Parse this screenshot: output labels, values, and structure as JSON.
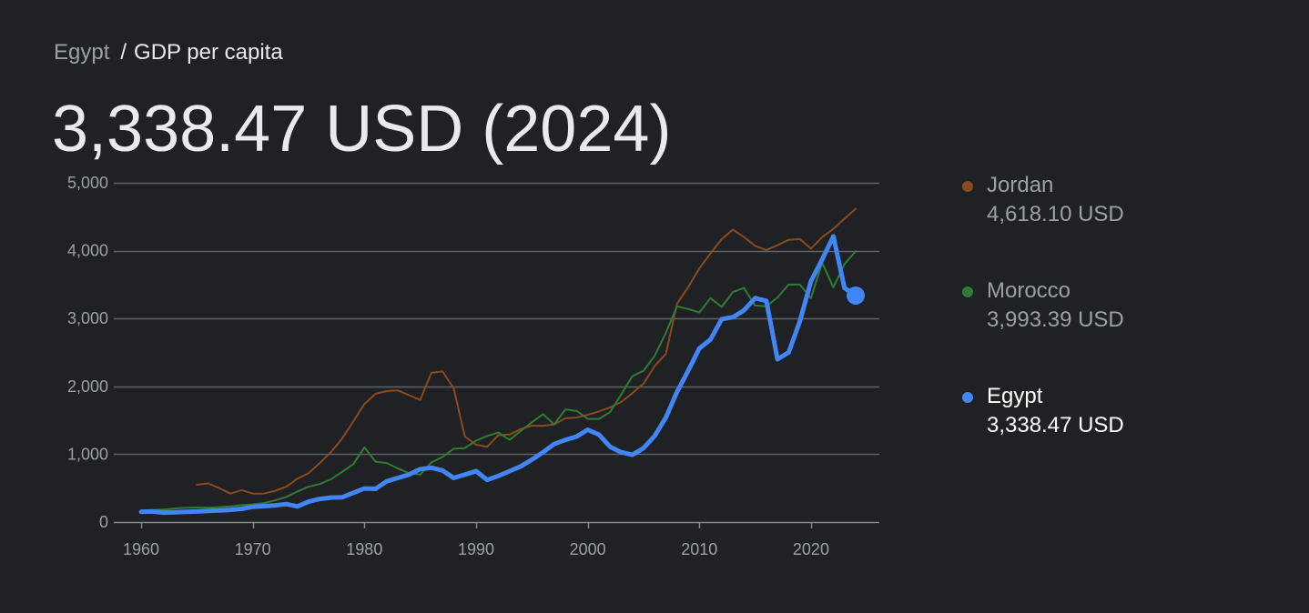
{
  "breadcrumb": {
    "parent": "Egypt",
    "separator": "/",
    "current": "GDP per capita"
  },
  "headline": "3,338.47 USD (2024)",
  "legend": [
    {
      "name": "Jordan",
      "value": "4,618.10 USD",
      "color": "#8a4a1e",
      "active": false
    },
    {
      "name": "Morocco",
      "value": "3,993.39 USD",
      "color": "#2e7d32",
      "active": false
    },
    {
      "name": "Egypt",
      "value": "3,338.47 USD",
      "color": "#4285f4",
      "active": true
    }
  ],
  "chart_data": {
    "type": "line",
    "xlim": [
      1960,
      2024
    ],
    "ylim": [
      0,
      5000
    ],
    "yticks": [
      0,
      1000,
      2000,
      3000,
      4000,
      5000
    ],
    "ytick_labels": [
      "0",
      "1,000",
      "2,000",
      "3,000",
      "4,000",
      "5,000"
    ],
    "xticks": [
      1960,
      1970,
      1980,
      1990,
      2000,
      2010,
      2020
    ],
    "xtick_labels": [
      "1960",
      "1970",
      "1980",
      "1990",
      "2000",
      "2010",
      "2020"
    ],
    "grid": true,
    "legend_position": "right",
    "series": [
      {
        "name": "Jordan",
        "color": "#8a4a1e",
        "x": [
          1965,
          1966,
          1967,
          1968,
          1969,
          1970,
          1971,
          1972,
          1973,
          1974,
          1975,
          1976,
          1977,
          1978,
          1979,
          1980,
          1981,
          1982,
          1983,
          1984,
          1985,
          1986,
          1987,
          1988,
          1989,
          1990,
          1991,
          1992,
          1993,
          1994,
          1995,
          1996,
          1997,
          1998,
          1999,
          2000,
          2001,
          2002,
          2003,
          2004,
          2005,
          2006,
          2007,
          2008,
          2009,
          2010,
          2011,
          2012,
          2013,
          2014,
          2015,
          2016,
          2017,
          2018,
          2019,
          2020,
          2021,
          2022,
          2023,
          2024
        ],
        "values": [
          550,
          570,
          500,
          420,
          470,
          420,
          420,
          460,
          520,
          640,
          720,
          870,
          1030,
          1230,
          1480,
          1740,
          1890,
          1930,
          1940,
          1870,
          1800,
          2200,
          2220,
          1970,
          1260,
          1140,
          1110,
          1280,
          1290,
          1370,
          1420,
          1420,
          1440,
          1530,
          1540,
          1580,
          1630,
          1690,
          1770,
          1900,
          2040,
          2300,
          2480,
          3220,
          3460,
          3740,
          3960,
          4170,
          4310,
          4200,
          4070,
          4010,
          4080,
          4160,
          4170,
          4030,
          4200,
          4320,
          4470,
          4618
        ]
      },
      {
        "name": "Morocco",
        "color": "#2e7d32",
        "x": [
          1960,
          1961,
          1962,
          1963,
          1964,
          1965,
          1966,
          1967,
          1968,
          1969,
          1970,
          1971,
          1972,
          1973,
          1974,
          1975,
          1976,
          1977,
          1978,
          1979,
          1980,
          1981,
          1982,
          1983,
          1984,
          1985,
          1986,
          1987,
          1988,
          1989,
          1990,
          1991,
          1992,
          1993,
          1994,
          1995,
          1996,
          1997,
          1998,
          1999,
          2000,
          2001,
          2002,
          2003,
          2004,
          2005,
          2006,
          2007,
          2008,
          2009,
          2010,
          2011,
          2012,
          2013,
          2014,
          2015,
          2016,
          2017,
          2018,
          2019,
          2020,
          2021,
          2022,
          2023,
          2024
        ],
        "values": [
          170,
          175,
          185,
          200,
          210,
          215,
          210,
          220,
          230,
          250,
          260,
          280,
          320,
          370,
          450,
          520,
          560,
          630,
          740,
          850,
          1100,
          890,
          870,
          790,
          720,
          700,
          880,
          960,
          1080,
          1090,
          1200,
          1270,
          1320,
          1210,
          1340,
          1470,
          1590,
          1440,
          1660,
          1640,
          1520,
          1520,
          1620,
          1880,
          2150,
          2230,
          2450,
          2790,
          3180,
          3140,
          3090,
          3300,
          3170,
          3390,
          3450,
          3190,
          3180,
          3310,
          3500,
          3500,
          3300,
          3820,
          3460,
          3800,
          3993
        ]
      },
      {
        "name": "Egypt",
        "color": "#4285f4",
        "x": [
          1960,
          1961,
          1962,
          1963,
          1964,
          1965,
          1966,
          1967,
          1968,
          1969,
          1970,
          1971,
          1972,
          1973,
          1974,
          1975,
          1976,
          1977,
          1978,
          1979,
          1980,
          1981,
          1982,
          1983,
          1984,
          1985,
          1986,
          1987,
          1988,
          1989,
          1990,
          1991,
          1992,
          1993,
          1994,
          1995,
          1996,
          1997,
          1998,
          1999,
          2000,
          2001,
          2002,
          2003,
          2004,
          2005,
          2006,
          2007,
          2008,
          2009,
          2010,
          2011,
          2012,
          2013,
          2014,
          2015,
          2016,
          2017,
          2018,
          2019,
          2020,
          2021,
          2022,
          2023,
          2024
        ],
        "values": [
          150,
          155,
          140,
          145,
          150,
          155,
          165,
          170,
          180,
          195,
          225,
          235,
          245,
          265,
          230,
          300,
          340,
          360,
          365,
          430,
          495,
          490,
          600,
          650,
          700,
          780,
          800,
          760,
          650,
          700,
          750,
          620,
          680,
          750,
          820,
          920,
          1030,
          1150,
          1210,
          1260,
          1360,
          1290,
          1110,
          1030,
          990,
          1090,
          1270,
          1540,
          1920,
          2230,
          2560,
          2690,
          2990,
          3020,
          3120,
          3300,
          3260,
          2400,
          2500,
          2960,
          3550,
          3870,
          4210,
          3450,
          3338
        ]
      }
    ]
  }
}
